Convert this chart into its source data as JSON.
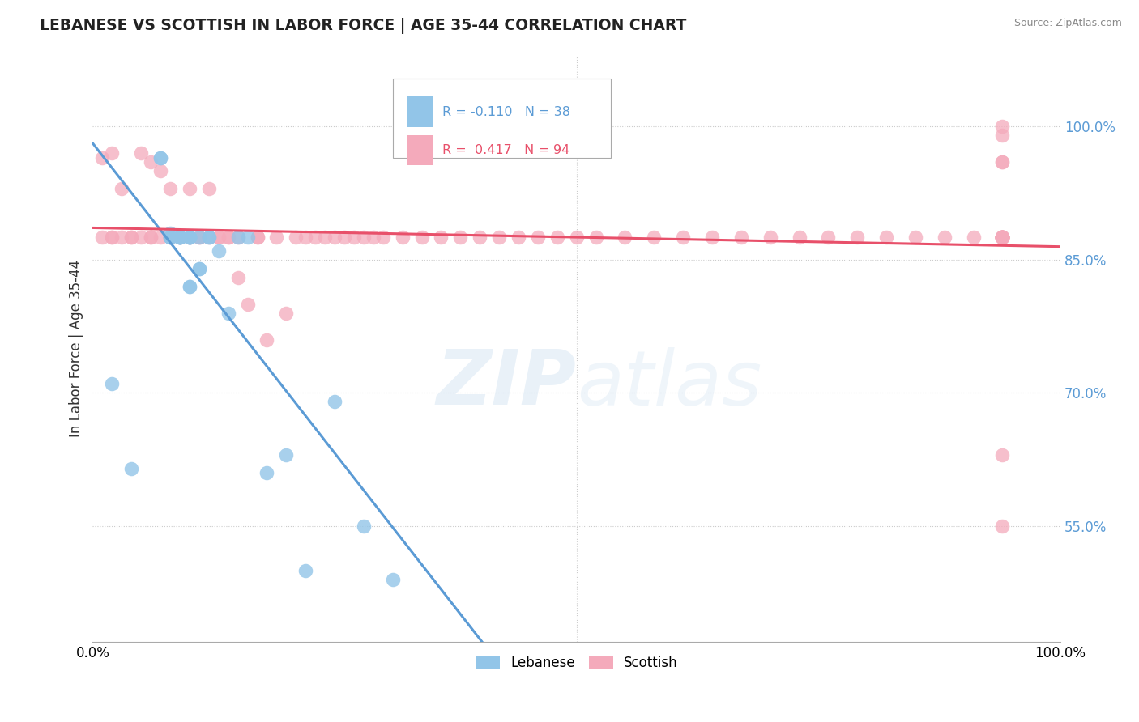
{
  "title": "LEBANESE VS SCOTTISH IN LABOR FORCE | AGE 35-44 CORRELATION CHART",
  "source": "Source: ZipAtlas.com",
  "ylabel": "In Labor Force | Age 35-44",
  "xlim": [
    0.0,
    1.0
  ],
  "ylim": [
    0.42,
    1.08
  ],
  "ytick_vals": [
    0.55,
    0.7,
    0.85,
    1.0
  ],
  "ytick_labels": [
    "55.0%",
    "70.0%",
    "85.0%",
    "100.0%"
  ],
  "xtick_vals": [
    0.0,
    1.0
  ],
  "xtick_labels": [
    "0.0%",
    "100.0%"
  ],
  "legend_r_lebanese": "-0.110",
  "legend_n_lebanese": "38",
  "legend_r_scottish": "0.417",
  "legend_n_scottish": "94",
  "lebanese_color": "#92C5E8",
  "scottish_color": "#F4AABB",
  "lebanese_line_color": "#5B9BD5",
  "scottish_line_color": "#E8506A",
  "background_color": "#FFFFFF",
  "watermark_zip": "ZIP",
  "watermark_atlas": "atlas",
  "leb_x": [
    0.02,
    0.04,
    0.07,
    0.07,
    0.08,
    0.08,
    0.08,
    0.08,
    0.09,
    0.09,
    0.09,
    0.09,
    0.09,
    0.09,
    0.09,
    0.1,
    0.1,
    0.1,
    0.1,
    0.1,
    0.1,
    0.1,
    0.1,
    0.11,
    0.11,
    0.11,
    0.12,
    0.12,
    0.13,
    0.14,
    0.15,
    0.16,
    0.18,
    0.2,
    0.22,
    0.25,
    0.28,
    0.31
  ],
  "leb_y": [
    0.71,
    0.615,
    0.965,
    0.965,
    0.875,
    0.875,
    0.875,
    0.88,
    0.875,
    0.875,
    0.875,
    0.875,
    0.875,
    0.875,
    0.875,
    0.875,
    0.875,
    0.875,
    0.875,
    0.875,
    0.875,
    0.82,
    0.82,
    0.84,
    0.84,
    0.875,
    0.875,
    0.875,
    0.86,
    0.79,
    0.875,
    0.875,
    0.61,
    0.63,
    0.5,
    0.69,
    0.55,
    0.49
  ],
  "sco_x": [
    0.01,
    0.01,
    0.02,
    0.02,
    0.02,
    0.03,
    0.03,
    0.04,
    0.04,
    0.05,
    0.05,
    0.06,
    0.06,
    0.06,
    0.07,
    0.07,
    0.08,
    0.08,
    0.09,
    0.09,
    0.1,
    0.1,
    0.1,
    0.11,
    0.11,
    0.12,
    0.12,
    0.13,
    0.13,
    0.14,
    0.14,
    0.15,
    0.15,
    0.16,
    0.17,
    0.17,
    0.18,
    0.19,
    0.2,
    0.21,
    0.22,
    0.23,
    0.24,
    0.25,
    0.26,
    0.27,
    0.28,
    0.29,
    0.3,
    0.32,
    0.34,
    0.36,
    0.38,
    0.4,
    0.42,
    0.44,
    0.46,
    0.48,
    0.5,
    0.52,
    0.55,
    0.58,
    0.61,
    0.64,
    0.67,
    0.7,
    0.73,
    0.76,
    0.79,
    0.82,
    0.85,
    0.88,
    0.91,
    0.94,
    0.94,
    0.94,
    0.94,
    0.94,
    0.94,
    0.94,
    0.94,
    0.94,
    0.94,
    0.94,
    0.94,
    0.94,
    0.94,
    0.94,
    0.94,
    0.94,
    0.94,
    0.94,
    0.94,
    0.94
  ],
  "sco_y": [
    0.875,
    0.965,
    0.875,
    0.875,
    0.97,
    0.93,
    0.875,
    0.875,
    0.875,
    0.875,
    0.97,
    0.875,
    0.875,
    0.96,
    0.875,
    0.95,
    0.875,
    0.93,
    0.875,
    0.875,
    0.875,
    0.875,
    0.93,
    0.875,
    0.875,
    0.875,
    0.93,
    0.875,
    0.875,
    0.875,
    0.875,
    0.83,
    0.875,
    0.8,
    0.875,
    0.875,
    0.76,
    0.875,
    0.79,
    0.875,
    0.875,
    0.875,
    0.875,
    0.875,
    0.875,
    0.875,
    0.875,
    0.875,
    0.875,
    0.875,
    0.875,
    0.875,
    0.875,
    0.875,
    0.875,
    0.875,
    0.875,
    0.875,
    0.875,
    0.875,
    0.875,
    0.875,
    0.875,
    0.875,
    0.875,
    0.875,
    0.875,
    0.875,
    0.875,
    0.875,
    0.875,
    0.875,
    0.875,
    0.63,
    0.875,
    0.875,
    0.875,
    0.875,
    0.875,
    0.875,
    0.875,
    0.875,
    0.875,
    0.875,
    0.875,
    0.875,
    0.875,
    0.875,
    0.55,
    0.875,
    0.96,
    0.96,
    0.99,
    1.0
  ]
}
